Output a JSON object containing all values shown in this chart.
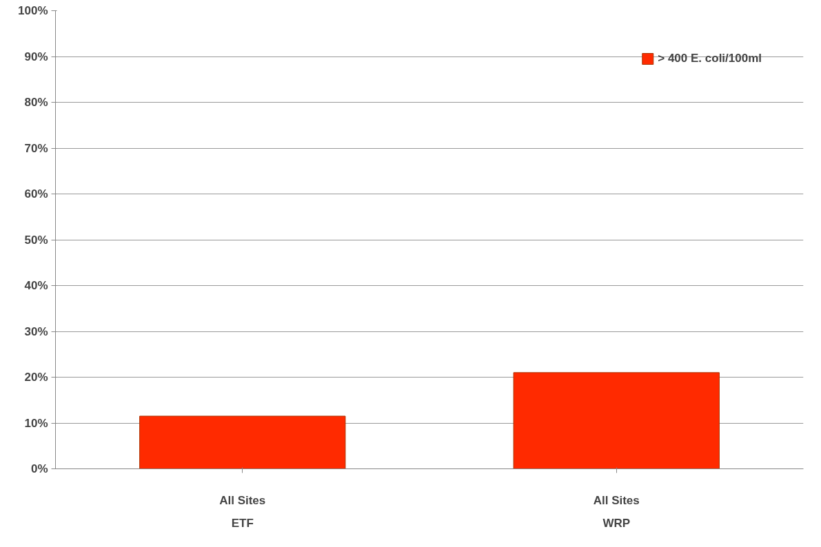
{
  "chart_data": {
    "type": "bar",
    "categories": [
      "All Sites",
      "All Sites"
    ],
    "series": [
      {
        "name": "> 400 E. coli/100ml",
        "color": "#ff2a00",
        "values": [
          11.5,
          21
        ]
      }
    ],
    "annotations": [
      "ETF",
      "WRP"
    ],
    "ylim": [
      0,
      100
    ],
    "yticks": [
      {
        "value": 0,
        "label": "0%"
      },
      {
        "value": 10,
        "label": "10%"
      },
      {
        "value": 20,
        "label": "20%"
      },
      {
        "value": 30,
        "label": "30%"
      },
      {
        "value": 40,
        "label": "40%"
      },
      {
        "value": 50,
        "label": "50%"
      },
      {
        "value": 60,
        "label": "60%"
      },
      {
        "value": 70,
        "label": "70%"
      },
      {
        "value": 80,
        "label": "80%"
      },
      {
        "value": 90,
        "label": "90%"
      },
      {
        "value": 100,
        "label": "100%"
      }
    ],
    "grid": "y",
    "legend": "top right"
  }
}
